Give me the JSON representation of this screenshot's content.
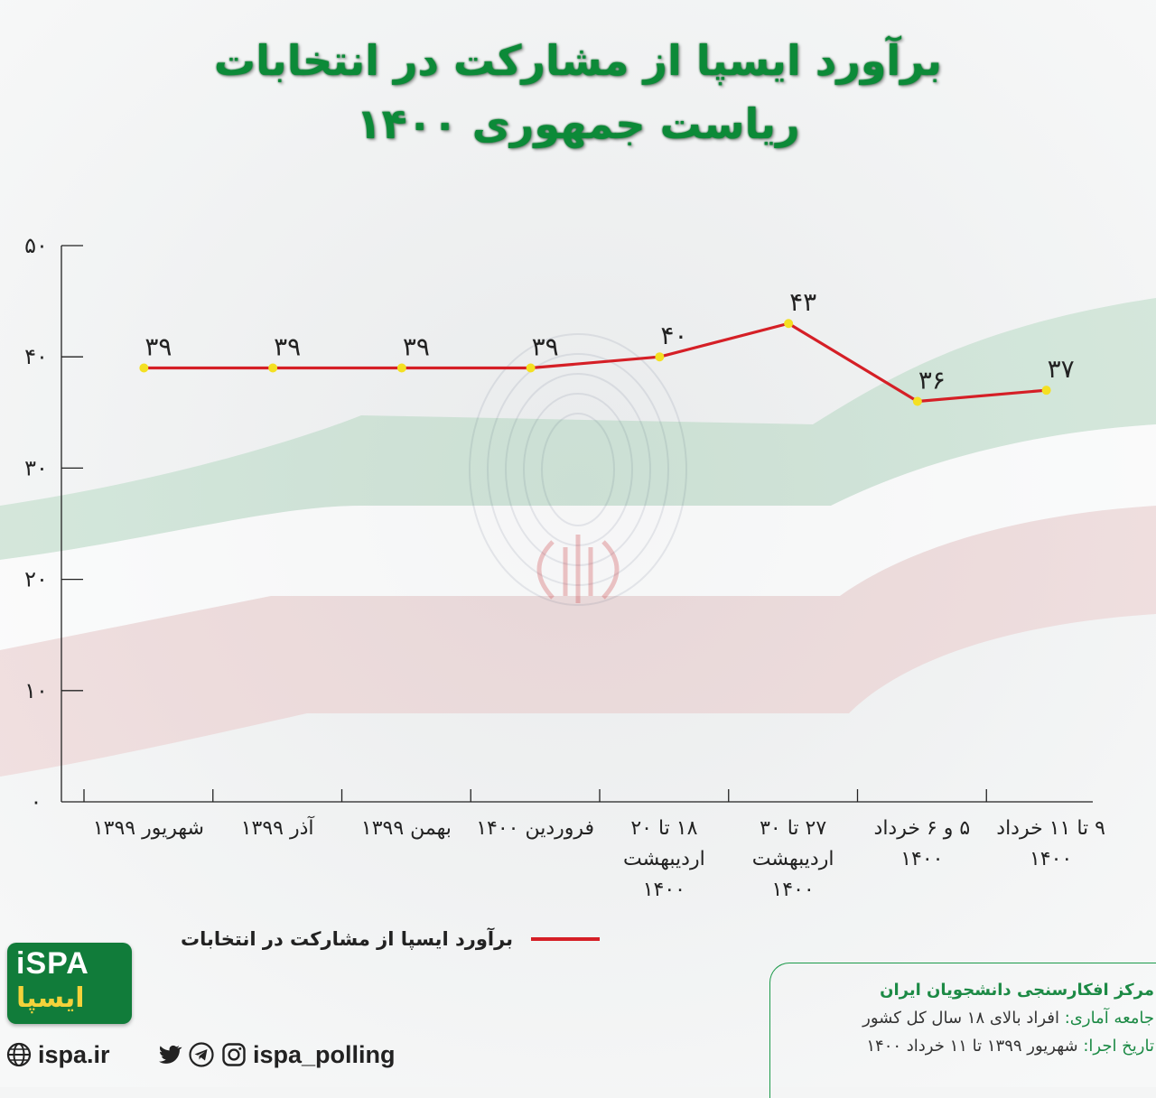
{
  "title": {
    "line1": "برآورد ایسپا از مشارکت در انتخابات",
    "line2": "ریاست جمهوری ۱۴۰۰"
  },
  "chart_data": {
    "type": "line",
    "categories": [
      [
        "شهریور ۱۳۹۹"
      ],
      [
        "آذر ۱۳۹۹"
      ],
      [
        "بهمن ۱۳۹۹"
      ],
      [
        "فروردین ۱۴۰۰"
      ],
      [
        "۱۸ تا ۲۰",
        "اردیبهشت",
        "۱۴۰۰"
      ],
      [
        "۲۷ تا ۳۰",
        "اردیبهشت",
        "۱۴۰۰"
      ],
      [
        "۵ و ۶ خرداد",
        "۱۴۰۰"
      ],
      [
        "۹ تا ۱۱ خرداد",
        "۱۴۰۰"
      ]
    ],
    "series": [
      {
        "name": "برآورد ایسپا از مشارکت در انتخابات",
        "values": [
          39,
          39,
          39,
          39,
          40,
          43,
          36,
          37
        ],
        "labels": [
          "۳۹",
          "۳۹",
          "۳۹",
          "۳۹",
          "۴۰",
          "۴۳",
          "۳۶",
          "۳۷"
        ],
        "color": "#d51f26",
        "marker_color": "#f4e022"
      }
    ],
    "ylim": [
      0,
      50
    ],
    "yticks": [
      0,
      10,
      20,
      30,
      40,
      50
    ],
    "ytick_labels": [
      "۰",
      "۱۰",
      "۲۰",
      "۳۰",
      "۴۰",
      "۵۰"
    ],
    "grid": false,
    "legend_position": "bottom"
  },
  "info": {
    "org": "مرکز افکارسنجی دانشجویان ایران",
    "population_key": "جامعه آماری:",
    "population_val": "افراد بالای ۱۸ سال کل کشور",
    "date_key": "تاریخ اجرا:",
    "date_val": "شهریور ۱۳۹۹ تا ۱۱ خرداد ۱۴۰۰"
  },
  "logo": {
    "latin": "iSPA",
    "persian": "ایسپا"
  },
  "footer": {
    "website": "ispa.ir",
    "handle": "ispa_polling"
  },
  "colors": {
    "title_green": "#0c8a38",
    "line_red": "#d51f26",
    "marker_yellow": "#f4e022",
    "info_green": "#1c8a45"
  }
}
